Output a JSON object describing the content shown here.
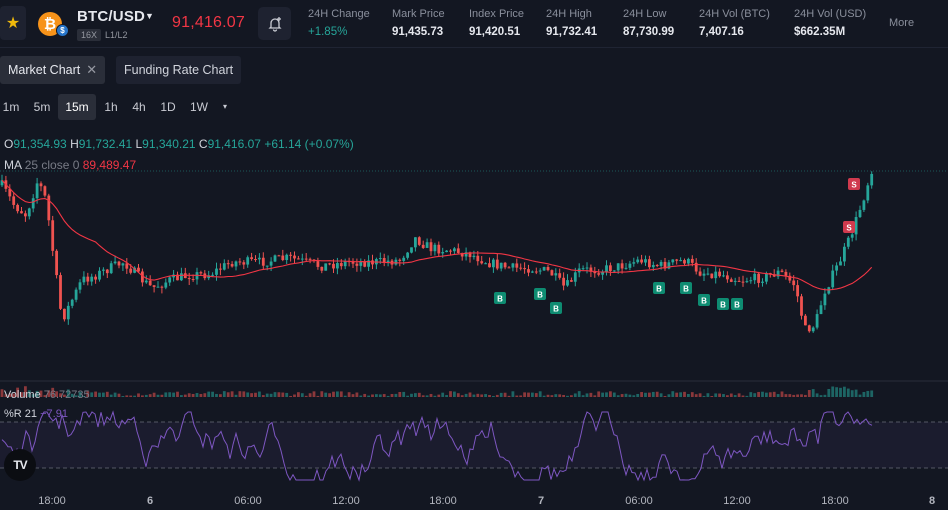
{
  "header": {
    "favorite_icon": "star-icon",
    "coin_symbol": "₿",
    "coin_sub_symbol": "$",
    "pair": "BTC/USD",
    "leverage": "16X",
    "levels": "L1/L2",
    "last_price": "91,416.07",
    "alert_icon": "bell-plus-icon",
    "stats": [
      {
        "label": "24H Change",
        "value": "+1.85%"
      },
      {
        "label": "Mark Price",
        "value": "91,435.73"
      },
      {
        "label": "Index Price",
        "value": "91,420.51"
      },
      {
        "label": "24H High",
        "value": "91,732.41"
      },
      {
        "label": "24H Low",
        "value": "87,730.99"
      },
      {
        "label": "24H Vol (BTC)",
        "value": "7,407.16"
      },
      {
        "label": "24H Vol (USD)",
        "value": "$662.35M"
      }
    ],
    "more": "More"
  },
  "tabs": [
    {
      "label": "Market Chart",
      "close": "✕"
    },
    {
      "label": "Funding Rate Chart"
    }
  ],
  "intervals": [
    "1m",
    "5m",
    "15m",
    "1h",
    "4h",
    "1D",
    "1W",
    "▾"
  ],
  "active_interval": "15m",
  "legend": {
    "ohlc": {
      "o_key": "O",
      "o": "91,354.93",
      "h_key": "H",
      "h": "91,732.41",
      "l_key": "L",
      "l": "91,340.21",
      "c_key": "C",
      "c": "91,416.07",
      "change": "+61.14 (+0.07%)"
    },
    "ma": {
      "name": "MA",
      "params": "25 close 0",
      "value": "89,489.47"
    },
    "volume": {
      "name": "Volume",
      "value": "76.72735"
    },
    "wr": {
      "name": "%R",
      "params": "21",
      "value": "−7.91"
    }
  },
  "time_axis": [
    "18:00",
    "6",
    "06:00",
    "12:00",
    "18:00",
    "7",
    "06:00",
    "12:00",
    "18:00",
    "8"
  ],
  "markers": {
    "buy": "B",
    "sell": "S"
  },
  "logo_text": "TV",
  "colors": {
    "up": "#26a69a",
    "down": "#ef5350",
    "ma": "#f23645",
    "wr": "#7e57c2",
    "bg": "#131722"
  }
}
